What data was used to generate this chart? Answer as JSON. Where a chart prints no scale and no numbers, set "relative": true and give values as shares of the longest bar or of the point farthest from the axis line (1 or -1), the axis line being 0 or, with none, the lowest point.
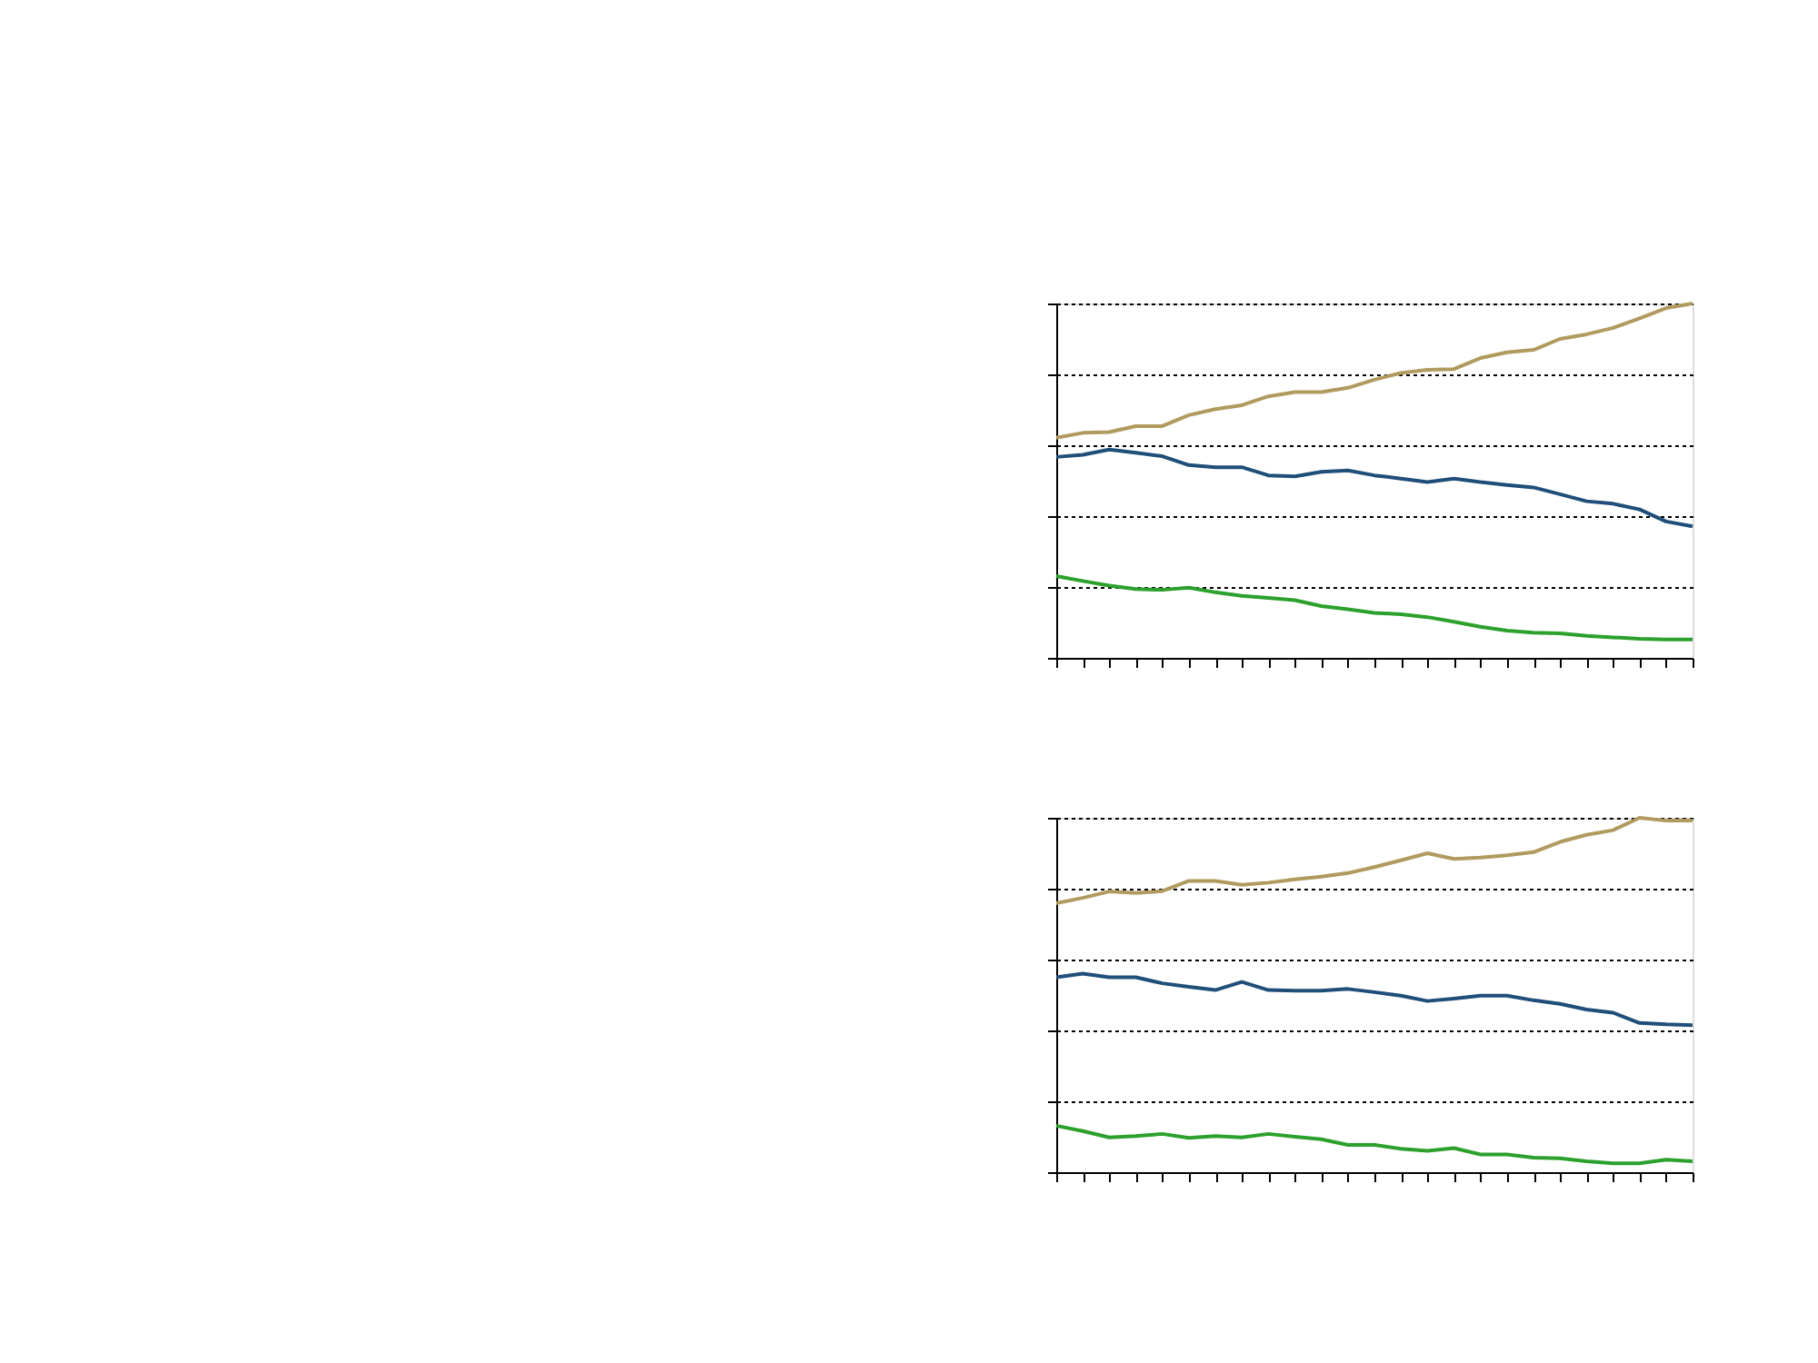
{
  "chart_data": [
    {
      "type": "line",
      "relative": true,
      "grid": "y",
      "tick_labels": false,
      "line_style": "solid",
      "categories": [
        null,
        null,
        null,
        null,
        null,
        null,
        null,
        null,
        null,
        null,
        null,
        null,
        null,
        null,
        null,
        null,
        null,
        null,
        null,
        null,
        null,
        null,
        null,
        null,
        null
      ],
      "series": [
        {
          "color": "#1f4e79",
          "values": [
            0.567,
            0.573,
            0.588,
            0.579,
            0.569,
            0.544,
            0.538,
            0.538,
            0.515,
            0.512,
            0.525,
            0.529,
            0.515,
            0.506,
            0.496,
            0.506,
            0.496,
            0.488,
            0.481,
            0.462,
            0.442,
            0.435,
            0.419,
            0.385,
            0.371
          ]
        },
        {
          "color": "#b09a5e",
          "values": [
            0.621,
            0.635,
            0.637,
            0.654,
            0.654,
            0.685,
            0.702,
            0.713,
            0.738,
            0.75,
            0.75,
            0.762,
            0.785,
            0.804,
            0.813,
            0.815,
            0.846,
            0.862,
            0.869,
            0.9,
            0.913,
            0.931,
            0.958,
            0.987,
            1
          ]
        },
        {
          "color": "#2ca02c",
          "values": [
            0.231,
            0.217,
            0.204,
            0.194,
            0.192,
            0.198,
            0.185,
            0.175,
            0.169,
            0.163,
            0.146,
            0.137,
            0.127,
            0.123,
            0.115,
            0.102,
            0.088,
            0.077,
            0.071,
            0.069,
            0.062,
            0.058,
            0.054,
            0.052,
            0.052
          ]
        }
      ]
    },
    {
      "type": "line",
      "relative": true,
      "grid": "y",
      "tick_labels": false,
      "line_style": "solid",
      "categories": [
        null,
        null,
        null,
        null,
        null,
        null,
        null,
        null,
        null,
        null,
        null,
        null,
        null,
        null,
        null,
        null,
        null,
        null,
        null,
        null,
        null,
        null,
        null,
        null,
        null
      ],
      "series": [
        {
          "color": "#1f4e79",
          "values": [
            0.55,
            0.56,
            0.55,
            0.55,
            0.533,
            0.523,
            0.514,
            0.537,
            0.514,
            0.512,
            0.512,
            0.517,
            0.508,
            0.498,
            0.483,
            0.49,
            0.498,
            0.498,
            0.485,
            0.475,
            0.459,
            0.45,
            0.421,
            0.417,
            0.415
          ]
        },
        {
          "color": "#b09a5e",
          "values": [
            0.759,
            0.774,
            0.792,
            0.788,
            0.793,
            0.822,
            0.822,
            0.811,
            0.817,
            0.826,
            0.834,
            0.844,
            0.861,
            0.88,
            0.9,
            0.884,
            0.888,
            0.894,
            0.903,
            0.932,
            0.952,
            0.965,
            1,
            0.992,
            0.992
          ]
        },
        {
          "color": "#2ca02c",
          "values": [
            0.131,
            0.116,
            0.098,
            0.102,
            0.108,
            0.097,
            0.102,
            0.098,
            0.108,
            0.1,
            0.093,
            0.077,
            0.077,
            0.066,
            0.06,
            0.068,
            0.05,
            0.05,
            0.041,
            0.039,
            0.031,
            0.025,
            0.025,
            0.035,
            0.031
          ]
        }
      ]
    }
  ]
}
